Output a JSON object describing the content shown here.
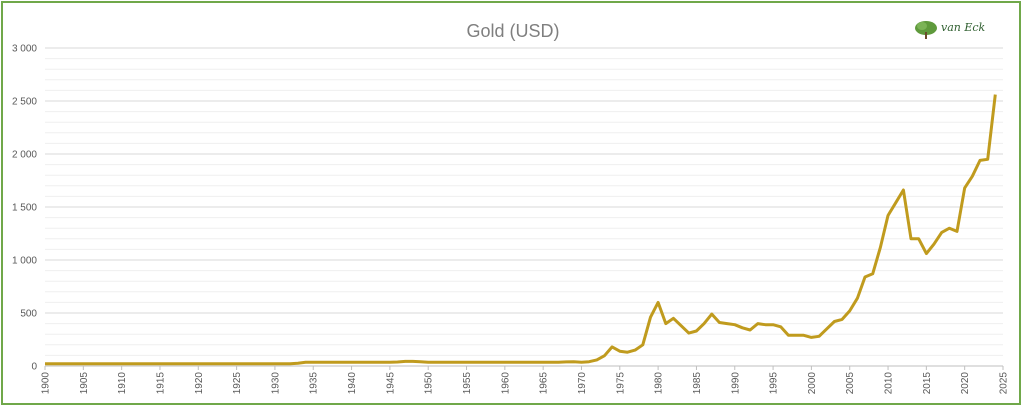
{
  "chart_data": {
    "type": "line",
    "title": "Gold (USD)",
    "xlabel": "",
    "ylabel": "",
    "xlim": [
      1900,
      2025
    ],
    "ylim": [
      0,
      3000
    ],
    "y_ticks": [
      "0",
      "500",
      "1 000",
      "1 500",
      "2 000",
      "2 500",
      "3 000"
    ],
    "x_ticks": [
      "1900",
      "1905",
      "1910",
      "1915",
      "1920",
      "1925",
      "1930",
      "1935",
      "1940",
      "1945",
      "1950",
      "1955",
      "1960",
      "1965",
      "1970",
      "1975",
      "1980",
      "1985",
      "1990",
      "1995",
      "2000",
      "2005",
      "2010",
      "2015",
      "2020",
      "2025"
    ],
    "grid": true,
    "line_color": "#c09b1e",
    "series": [
      {
        "x": [
          1900,
          1901,
          1902,
          1903,
          1904,
          1905,
          1906,
          1907,
          1908,
          1909,
          1910,
          1911,
          1912,
          1913,
          1914,
          1915,
          1916,
          1917,
          1918,
          1919,
          1920,
          1921,
          1922,
          1923,
          1924,
          1925,
          1926,
          1927,
          1928,
          1929,
          1930,
          1931,
          1932,
          1933,
          1934,
          1935,
          1936,
          1937,
          1938,
          1939,
          1940,
          1941,
          1942,
          1943,
          1944,
          1945,
          1946,
          1947,
          1948,
          1949,
          1950,
          1951,
          1952,
          1953,
          1954,
          1955,
          1956,
          1957,
          1958,
          1959,
          1960,
          1961,
          1962,
          1963,
          1964,
          1965,
          1966,
          1967,
          1968,
          1969,
          1970,
          1971,
          1972,
          1973,
          1974,
          1975,
          1976,
          1977,
          1978,
          1979,
          1980,
          1981,
          1982,
          1983,
          1984,
          1985,
          1986,
          1987,
          1988,
          1989,
          1990,
          1991,
          1992,
          1993,
          1994,
          1995,
          1996,
          1997,
          1998,
          1999,
          2000,
          2001,
          2002,
          2003,
          2004,
          2005,
          2006,
          2007,
          2008,
          2009,
          2010,
          2011,
          2012,
          2013,
          2014,
          2015,
          2016,
          2017,
          2018,
          2019,
          2020,
          2021,
          2022,
          2023,
          2024
        ],
        "y": [
          21,
          21,
          21,
          21,
          21,
          21,
          21,
          21,
          21,
          21,
          21,
          21,
          21,
          21,
          21,
          21,
          21,
          21,
          21,
          21,
          21,
          21,
          21,
          21,
          21,
          21,
          21,
          21,
          21,
          21,
          21,
          21,
          21,
          26,
          35,
          35,
          35,
          35,
          35,
          35,
          35,
          35,
          35,
          35,
          35,
          35,
          38,
          43,
          43,
          40,
          35,
          35,
          35,
          35,
          35,
          35,
          35,
          35,
          35,
          35,
          35,
          35,
          35,
          35,
          35,
          35,
          35,
          35,
          39,
          41,
          36,
          41,
          58,
          97,
          180,
          140,
          130,
          150,
          200,
          460,
          600,
          400,
          450,
          380,
          310,
          330,
          400,
          490,
          410,
          400,
          390,
          360,
          340,
          400,
          390,
          390,
          370,
          290,
          290,
          290,
          270,
          280,
          350,
          420,
          440,
          520,
          640,
          840,
          870,
          1120,
          1420,
          1540,
          1660,
          1200,
          1200,
          1060,
          1150,
          1260,
          1300,
          1270,
          1680,
          1790,
          1940,
          1950,
          2560
        ]
      }
    ]
  }
}
